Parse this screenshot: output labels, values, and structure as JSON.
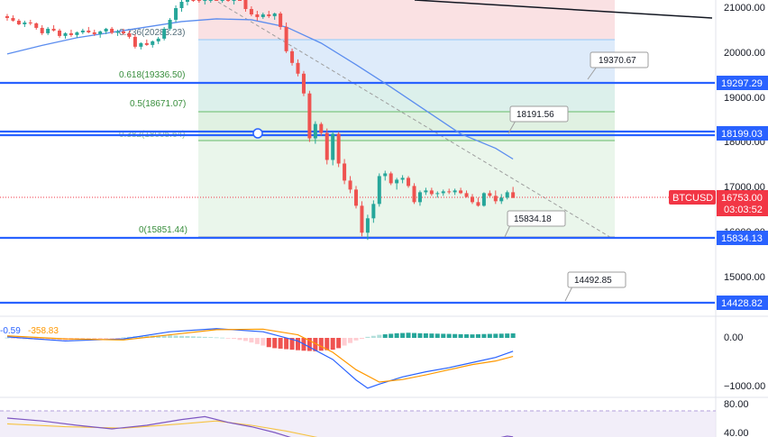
{
  "symbol": "BTCUSD",
  "countdown": "03:03:52",
  "colors": {
    "up": "#26a69a",
    "down": "#ef5350",
    "level": "#2962ff",
    "ma": "#5b8def",
    "macd_line": "#2962ff",
    "signal_line": "#ff9800",
    "rsi": "#7e57c2",
    "price_tag": "#f23645"
  },
  "price_axis": {
    "ticks": [
      "21000.00",
      "20000.00",
      "19000.00",
      "18000.00",
      "17000.00",
      "16000.00",
      "15000.00"
    ]
  },
  "level_tags": [
    "19297.29",
    "18199.03",
    "15834.13",
    "14428.82"
  ],
  "current_price": "16753.00",
  "fib": {
    "labels": [
      "0.236(20283.23)",
      "0.618(19336.50)",
      "0.5(18671.07)",
      "0.382(18005.64)",
      "0(15851.44)"
    ]
  },
  "callouts": [
    "19370.67",
    "18191.56",
    "15834.18",
    "14492.85"
  ],
  "macd": {
    "values": [
      "-0.59",
      "-358.83"
    ],
    "axis_ticks": [
      "0.00",
      "−1000.00"
    ]
  },
  "rsi": {
    "axis_ticks": [
      "80.00",
      "40.00"
    ]
  },
  "chart_data": {
    "type": "candlestick",
    "symbol": "BTCUSD",
    "price_range": [
      14300,
      21300
    ],
    "horizontal_levels": [
      19297.29,
      18199.03,
      15834.13,
      14428.82
    ],
    "current_price": 16753.0,
    "fibonacci": [
      {
        "ratio": 0.236,
        "price": 20283.23
      },
      {
        "ratio": 0.618,
        "price": 19336.5
      },
      {
        "ratio": 0.5,
        "price": 18671.07
      },
      {
        "ratio": 0.382,
        "price": 18005.64
      },
      {
        "ratio": 0,
        "price": 15851.44
      }
    ],
    "candles": [
      [
        20800,
        20850,
        20700,
        20760
      ],
      [
        20760,
        20820,
        20680,
        20700
      ],
      [
        20700,
        20740,
        20600,
        20620
      ],
      [
        20620,
        20700,
        20560,
        20660
      ],
      [
        20660,
        20720,
        20600,
        20640
      ],
      [
        20640,
        20660,
        20500,
        20540
      ],
      [
        20540,
        20600,
        20380,
        20420
      ],
      [
        20420,
        20560,
        20380,
        20520
      ],
      [
        20520,
        20600,
        20460,
        20480
      ],
      [
        20480,
        20520,
        20320,
        20360
      ],
      [
        20360,
        20440,
        20300,
        20420
      ],
      [
        20420,
        20500,
        20340,
        20380
      ],
      [
        20380,
        20460,
        20320,
        20440
      ],
      [
        20440,
        20520,
        20400,
        20480
      ],
      [
        20480,
        20560,
        20420,
        20440
      ],
      [
        20440,
        20500,
        20360,
        20400
      ],
      [
        20400,
        20480,
        20320,
        20460
      ],
      [
        20460,
        20540,
        20400,
        20520
      ],
      [
        20520,
        20560,
        20400,
        20430
      ],
      [
        20430,
        20500,
        20360,
        20460
      ],
      [
        20460,
        20520,
        20380,
        20420
      ],
      [
        20420,
        20480,
        20300,
        20340
      ],
      [
        20340,
        20400,
        20080,
        20120
      ],
      [
        20120,
        20220,
        20060,
        20200
      ],
      [
        20200,
        20280,
        20140,
        20160
      ],
      [
        20160,
        20260,
        20100,
        20240
      ],
      [
        20240,
        20340,
        20180,
        20300
      ],
      [
        20300,
        20560,
        20260,
        20520
      ],
      [
        20520,
        20760,
        20480,
        20720
      ],
      [
        20720,
        21040,
        20660,
        20980
      ],
      [
        20980,
        21200,
        20900,
        21120
      ],
      [
        21120,
        21300,
        21040,
        21240
      ],
      [
        21240,
        21300,
        21120,
        21200
      ],
      [
        21200,
        21280,
        21100,
        21140
      ],
      [
        21140,
        21240,
        21060,
        21180
      ],
      [
        21180,
        21300,
        21100,
        21240
      ],
      [
        21240,
        21300,
        21140,
        21180
      ],
      [
        21180,
        21300,
        21100,
        21220
      ],
      [
        21220,
        21300,
        21120,
        21160
      ],
      [
        21160,
        21300,
        21060,
        21240
      ],
      [
        21240,
        21300,
        21160,
        21200
      ],
      [
        21200,
        21300,
        20900,
        20960
      ],
      [
        20960,
        21020,
        20800,
        20840
      ],
      [
        20840,
        20920,
        20700,
        20780
      ],
      [
        20780,
        20880,
        20740,
        20840
      ],
      [
        20840,
        20920,
        20760,
        20800
      ],
      [
        20800,
        20880,
        20720,
        20860
      ],
      [
        20860,
        20900,
        20500,
        20560
      ],
      [
        20560,
        20660,
        19980,
        20020
      ],
      [
        20020,
        20080,
        19700,
        19760
      ],
      [
        19760,
        19840,
        19460,
        19520
      ],
      [
        19520,
        19580,
        19020,
        19080
      ],
      [
        19080,
        19140,
        18000,
        18080
      ],
      [
        18080,
        18460,
        17960,
        18400
      ],
      [
        18400,
        18440,
        18140,
        18200
      ],
      [
        18200,
        18300,
        17500,
        17600
      ],
      [
        17600,
        18220,
        17480,
        18180
      ],
      [
        18180,
        18220,
        17440,
        17520
      ],
      [
        17520,
        17620,
        17060,
        17140
      ],
      [
        17140,
        17240,
        16860,
        16940
      ],
      [
        16940,
        17020,
        16520,
        16580
      ],
      [
        16580,
        16680,
        15900,
        15980
      ],
      [
        15980,
        16380,
        15820,
        16300
      ],
      [
        16300,
        16700,
        16200,
        16620
      ],
      [
        16620,
        17300,
        16560,
        17240
      ],
      [
        17240,
        17360,
        17140,
        17300
      ],
      [
        17300,
        17340,
        17040,
        17080
      ],
      [
        17080,
        17200,
        16940,
        17160
      ],
      [
        17160,
        17260,
        17080,
        17200
      ],
      [
        17200,
        17240,
        16980,
        17020
      ],
      [
        17020,
        17080,
        16620,
        16660
      ],
      [
        16660,
        16920,
        16580,
        16880
      ],
      [
        16880,
        16980,
        16820,
        16920
      ],
      [
        16920,
        16980,
        16800,
        16840
      ],
      [
        16840,
        16900,
        16760,
        16860
      ],
      [
        16860,
        16940,
        16800,
        16900
      ],
      [
        16900,
        16960,
        16840,
        16880
      ],
      [
        16880,
        16960,
        16820,
        16920
      ],
      [
        16920,
        16980,
        16840,
        16860
      ],
      [
        16860,
        16920,
        16760,
        16780
      ],
      [
        16780,
        16840,
        16620,
        16660
      ],
      [
        16660,
        16760,
        16560,
        16580
      ],
      [
        16580,
        16880,
        16560,
        16860
      ],
      [
        16860,
        16920,
        16760,
        16800
      ],
      [
        16800,
        16920,
        16620,
        16680
      ],
      [
        16680,
        16840,
        16620,
        16760
      ],
      [
        16760,
        16920,
        16720,
        16880
      ],
      [
        16880,
        17000,
        16800,
        16753
      ]
    ],
    "moving_average": [
      [
        0,
        19960
      ],
      [
        6,
        20150
      ],
      [
        12,
        20320
      ],
      [
        18,
        20440
      ],
      [
        24,
        20560
      ],
      [
        30,
        20680
      ],
      [
        36,
        20740
      ],
      [
        42,
        20720
      ],
      [
        48,
        20560
      ],
      [
        54,
        20200
      ],
      [
        60,
        19720
      ],
      [
        66,
        19220
      ],
      [
        72,
        18700
      ],
      [
        78,
        18180
      ],
      [
        84,
        17860
      ],
      [
        87,
        17620
      ]
    ],
    "macd_histogram": [
      5,
      -12,
      -20,
      -25,
      -30,
      -35,
      -40,
      -45,
      -50,
      -55,
      -50,
      -45,
      -40,
      -35,
      -30,
      -25,
      -20,
      -15,
      -10,
      -5,
      10,
      20,
      30,
      35,
      40,
      45,
      50,
      55,
      50,
      45,
      40,
      35,
      30,
      25,
      20,
      15,
      10,
      5,
      -5,
      -20,
      -40,
      -60,
      -90,
      -120,
      -150,
      -180,
      -200,
      -210,
      -220,
      -230,
      -240,
      -250,
      -255,
      -260,
      -250,
      -240,
      -230,
      -200,
      -150,
      -100,
      -50,
      -20,
      20,
      40,
      60,
      70,
      80,
      90,
      95,
      100,
      95,
      90,
      88,
      85,
      82,
      80,
      78,
      75,
      72,
      70,
      68,
      72,
      75,
      78,
      80,
      82,
      85,
      88
    ],
    "macd_line": [
      [
        0,
        20
      ],
      [
        10,
        -60
      ],
      [
        20,
        -20
      ],
      [
        28,
        120
      ],
      [
        36,
        180
      ],
      [
        44,
        120
      ],
      [
        50,
        -60
      ],
      [
        56,
        -420
      ],
      [
        60,
        -820
      ],
      [
        62,
        -980
      ],
      [
        64,
        -900
      ],
      [
        68,
        -760
      ],
      [
        72,
        -660
      ],
      [
        76,
        -580
      ],
      [
        80,
        -480
      ],
      [
        84,
        -380
      ],
      [
        87,
        -260
      ]
    ],
    "signal_line": [
      [
        0,
        40
      ],
      [
        10,
        -20
      ],
      [
        20,
        -40
      ],
      [
        28,
        60
      ],
      [
        36,
        160
      ],
      [
        44,
        170
      ],
      [
        50,
        60
      ],
      [
        56,
        -280
      ],
      [
        60,
        -620
      ],
      [
        64,
        -860
      ],
      [
        68,
        -810
      ],
      [
        72,
        -720
      ],
      [
        76,
        -620
      ],
      [
        80,
        -520
      ],
      [
        84,
        -450
      ],
      [
        87,
        -360
      ]
    ],
    "rsi_line": [
      [
        0,
        70
      ],
      [
        6,
        66
      ],
      [
        12,
        60
      ],
      [
        18,
        55
      ],
      [
        24,
        60
      ],
      [
        30,
        68
      ],
      [
        34,
        72
      ],
      [
        38,
        64
      ],
      [
        42,
        58
      ],
      [
        46,
        50
      ],
      [
        50,
        40
      ],
      [
        54,
        32
      ],
      [
        58,
        26
      ],
      [
        62,
        20
      ],
      [
        66,
        33
      ],
      [
        70,
        38
      ],
      [
        74,
        35
      ],
      [
        78,
        33
      ],
      [
        82,
        38
      ],
      [
        86,
        45
      ],
      [
        87,
        44
      ]
    ],
    "rsi_signal": [
      [
        0,
        62
      ],
      [
        10,
        58
      ],
      [
        20,
        56
      ],
      [
        30,
        62
      ],
      [
        36,
        66
      ],
      [
        42,
        60
      ],
      [
        48,
        52
      ],
      [
        54,
        42
      ],
      [
        60,
        32
      ],
      [
        66,
        28
      ],
      [
        72,
        30
      ],
      [
        78,
        32
      ],
      [
        84,
        36
      ],
      [
        87,
        38
      ]
    ]
  }
}
